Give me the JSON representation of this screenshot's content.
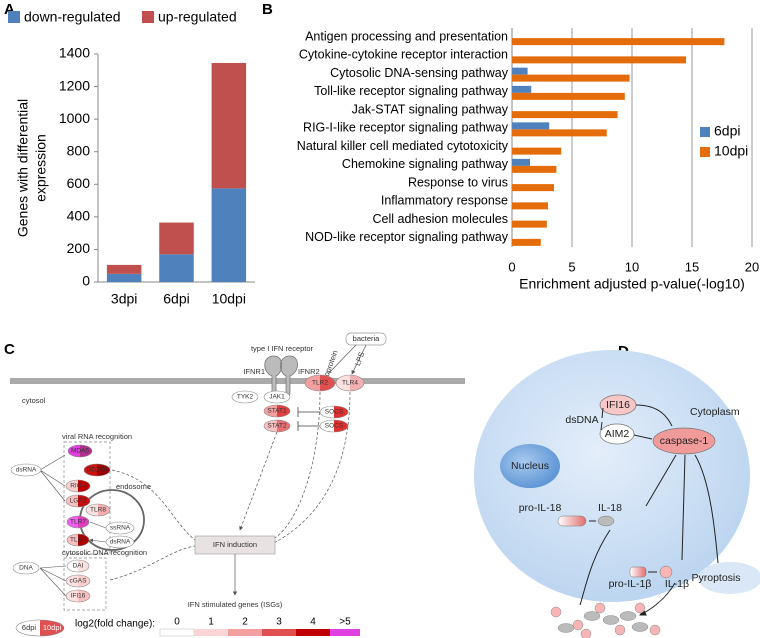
{
  "panel_labels": [
    "A",
    "B",
    "C",
    "D"
  ],
  "chart_data": [
    {
      "type": "bar",
      "stacked": true,
      "y_label": [
        "Genes with differential",
        "expression"
      ],
      "categories": [
        "3dpi",
        "6dpi",
        "10dpi"
      ],
      "series": [
        {
          "name": "down-regulated",
          "color": "#4f81bd",
          "values": [
            50,
            170,
            575
          ]
        },
        {
          "name": "up-regulated",
          "color": "#c0504d",
          "values": [
            55,
            195,
            770
          ]
        }
      ],
      "ylim": [
        0,
        1400
      ],
      "yticks": [
        0,
        200,
        400,
        600,
        800,
        1000,
        1200,
        1400
      ],
      "grid": false,
      "legend": "top"
    },
    {
      "type": "barh",
      "x_label": "Enrichment adjusted p-value(-log10)",
      "categories": [
        "Antigen processing and presentation",
        "Cytokine-cytokine receptor interaction",
        "Cytosolic DNA-sensing pathway",
        "Toll-like receptor signaling pathway",
        "Jak-STAT signaling pathway",
        "RIG-I-like receptor signaling pathway",
        "Natural killer cell mediated cytotoxicity",
        "Chemokine signaling pathway",
        "Response to virus",
        "Inflammatory response",
        "Cell adhesion molecules",
        "NOD-like receptor signaling pathway"
      ],
      "series": [
        {
          "name": "6dpi",
          "color": "#4f81bd",
          "values": [
            null,
            null,
            1.3,
            1.6,
            null,
            3.1,
            null,
            1.5,
            null,
            null,
            null,
            null
          ]
        },
        {
          "name": "10dpi",
          "color": "#e46c0a",
          "values": [
            17.7,
            14.5,
            9.8,
            9.4,
            8.8,
            7.9,
            4.1,
            3.7,
            3.5,
            3.0,
            2.9,
            2.4
          ]
        }
      ],
      "xlim": [
        0,
        20
      ],
      "xticks": [
        0,
        5,
        10,
        15,
        20
      ],
      "grid": true,
      "legend": "right"
    }
  ],
  "diagram_c": {
    "receptor": "type I IFN receptor",
    "ifnr1": "IFNR1",
    "ifnr2": "IFNR2",
    "bacteria": "bacteria",
    "lipoprotein": "lipoprotein",
    "lps": "LPS",
    "tlr2": "TLR2",
    "tlr4": "TLR4",
    "tyk2": "TYK2",
    "jak1": "JAK1",
    "stat1": "STAT1",
    "stat2": "STAT2",
    "socs_a": "SOCS",
    "socs_b": "SOCS",
    "cytosol": "cytosol",
    "viral": "viral RNA recognition",
    "dsrna": "dsRNA",
    "mda5": "MDA5",
    "ddx60": "DDX60",
    "rig1": "RIG-I",
    "lgp2": "LGP2",
    "endosome": "endosome",
    "tlr8": "TLR8",
    "tlr7": "TLR7",
    "tlr3": "TLR3",
    "ssrna": "ssRNA",
    "dsrna_endo": "dsRNA",
    "dna_rec": "cytosolic DNA recognition",
    "dna": "DNA",
    "dai": "DAI",
    "cgas": "cGAS",
    "ifi16": "IFI16",
    "ifn_induction": "IFN induction",
    "isgs": "IFN stimulated genes (ISGs)",
    "key_6": "6dpi",
    "key_10": "10dpi",
    "scale_title": "log2(fold change):",
    "scale_labels": [
      "0",
      "1",
      "2",
      "3",
      "4",
      ">5"
    ]
  },
  "diagram_d": {
    "cytoplasm": "Cytoplasm",
    "nucleus": "Nucleus",
    "dsdna": "dsDNA",
    "ifi16": "IFI16",
    "aim2": "AIM2",
    "caspase": "caspase-1",
    "pro_il18": "pro-IL-18",
    "il18": "IL-18",
    "pro_il1b": "pro-IL-1β",
    "il1b": "IL-1β",
    "pyroptosis": "Pyroptosis"
  }
}
